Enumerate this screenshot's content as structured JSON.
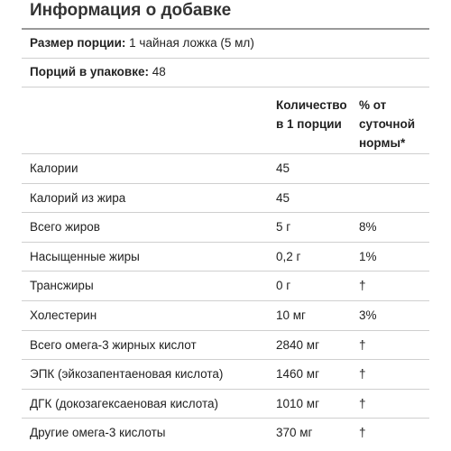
{
  "title": "Информация о добавке",
  "serving_size": {
    "label": "Размер порции:",
    "value": " 1 чайная ложка (5 мл)"
  },
  "servings": {
    "label": "Порций в упаковке:",
    "value": " 48"
  },
  "columns": {
    "amount": [
      "Количество",
      "в 1 порции"
    ],
    "daily": [
      "% от",
      "суточной",
      "нормы*"
    ]
  },
  "rows": [
    {
      "name": "Калории",
      "amount": "45",
      "dv": ""
    },
    {
      "name": "Калорий из жира",
      "amount": "45",
      "dv": ""
    },
    {
      "name": "Всего жиров",
      "amount": "5 г",
      "dv": "8%"
    },
    {
      "name": "Насыщенные жиры",
      "amount": "0,2 г",
      "dv": "1%"
    },
    {
      "name": "Трансжиры",
      "amount": "0 г",
      "dv": "†"
    },
    {
      "name": "Холестерин",
      "amount": "10 мг",
      "dv": "3%"
    },
    {
      "name": "Всего омега-3 жирных кислот",
      "amount": "2840 мг",
      "dv": "†"
    },
    {
      "name": "ЭПК (эйкозапентаеновая кислота)",
      "amount": "1460 мг",
      "dv": "†"
    },
    {
      "name": "ДГК (докозагексаеновая кислота)",
      "amount": "1010 мг",
      "dv": "†"
    },
    {
      "name": "Другие омега-3 кислоты",
      "amount": "370 мг",
      "dv": "†"
    }
  ]
}
